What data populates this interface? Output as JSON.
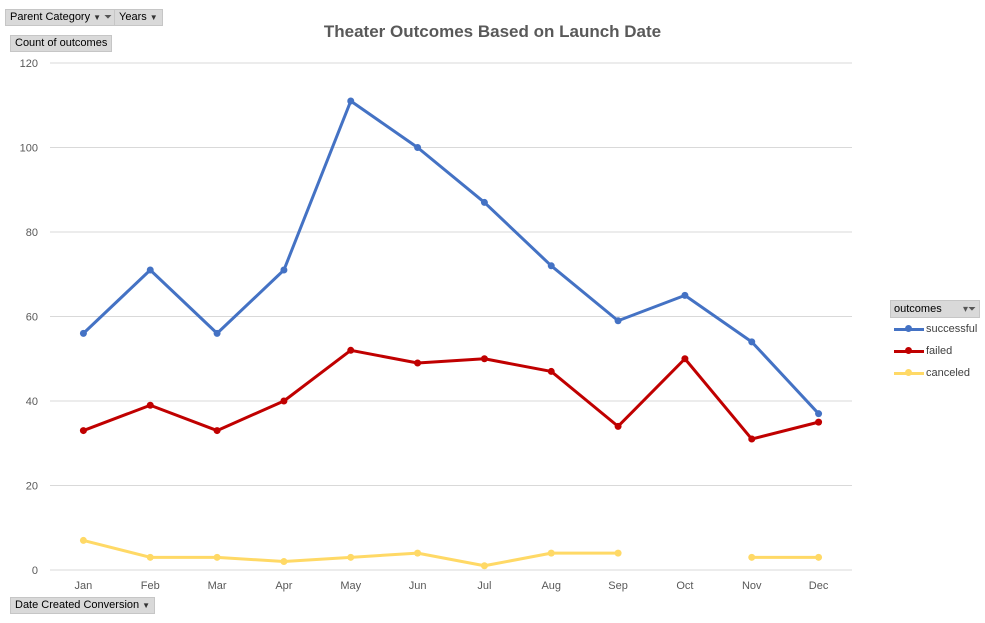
{
  "filters": {
    "parent_category": "Parent Category",
    "years": "Years",
    "values_label": "Count of outcomes",
    "axis_field": "Date Created Conversion"
  },
  "legend": {
    "title": "outcomes"
  },
  "chart_data": {
    "type": "line",
    "title": "Theater Outcomes Based on Launch Date",
    "xlabel": "",
    "ylabel": "",
    "ylim": [
      0,
      120
    ],
    "yticks": [
      0,
      20,
      40,
      60,
      80,
      100,
      120
    ],
    "grid": true,
    "legend_position": "right",
    "categories": [
      "Jan",
      "Feb",
      "Mar",
      "Apr",
      "May",
      "Jun",
      "Jul",
      "Aug",
      "Sep",
      "Oct",
      "Nov",
      "Dec"
    ],
    "series": [
      {
        "name": "successful",
        "color": "#4472c4",
        "values": [
          56,
          71,
          56,
          71,
          111,
          100,
          87,
          72,
          59,
          65,
          54,
          37
        ]
      },
      {
        "name": "failed",
        "color": "#c00000",
        "values": [
          33,
          39,
          33,
          40,
          52,
          49,
          50,
          47,
          34,
          50,
          31,
          35
        ]
      },
      {
        "name": "canceled",
        "color": "#ffd966",
        "values": [
          7,
          3,
          3,
          2,
          3,
          4,
          1,
          4,
          4,
          null,
          3,
          3
        ]
      }
    ]
  }
}
